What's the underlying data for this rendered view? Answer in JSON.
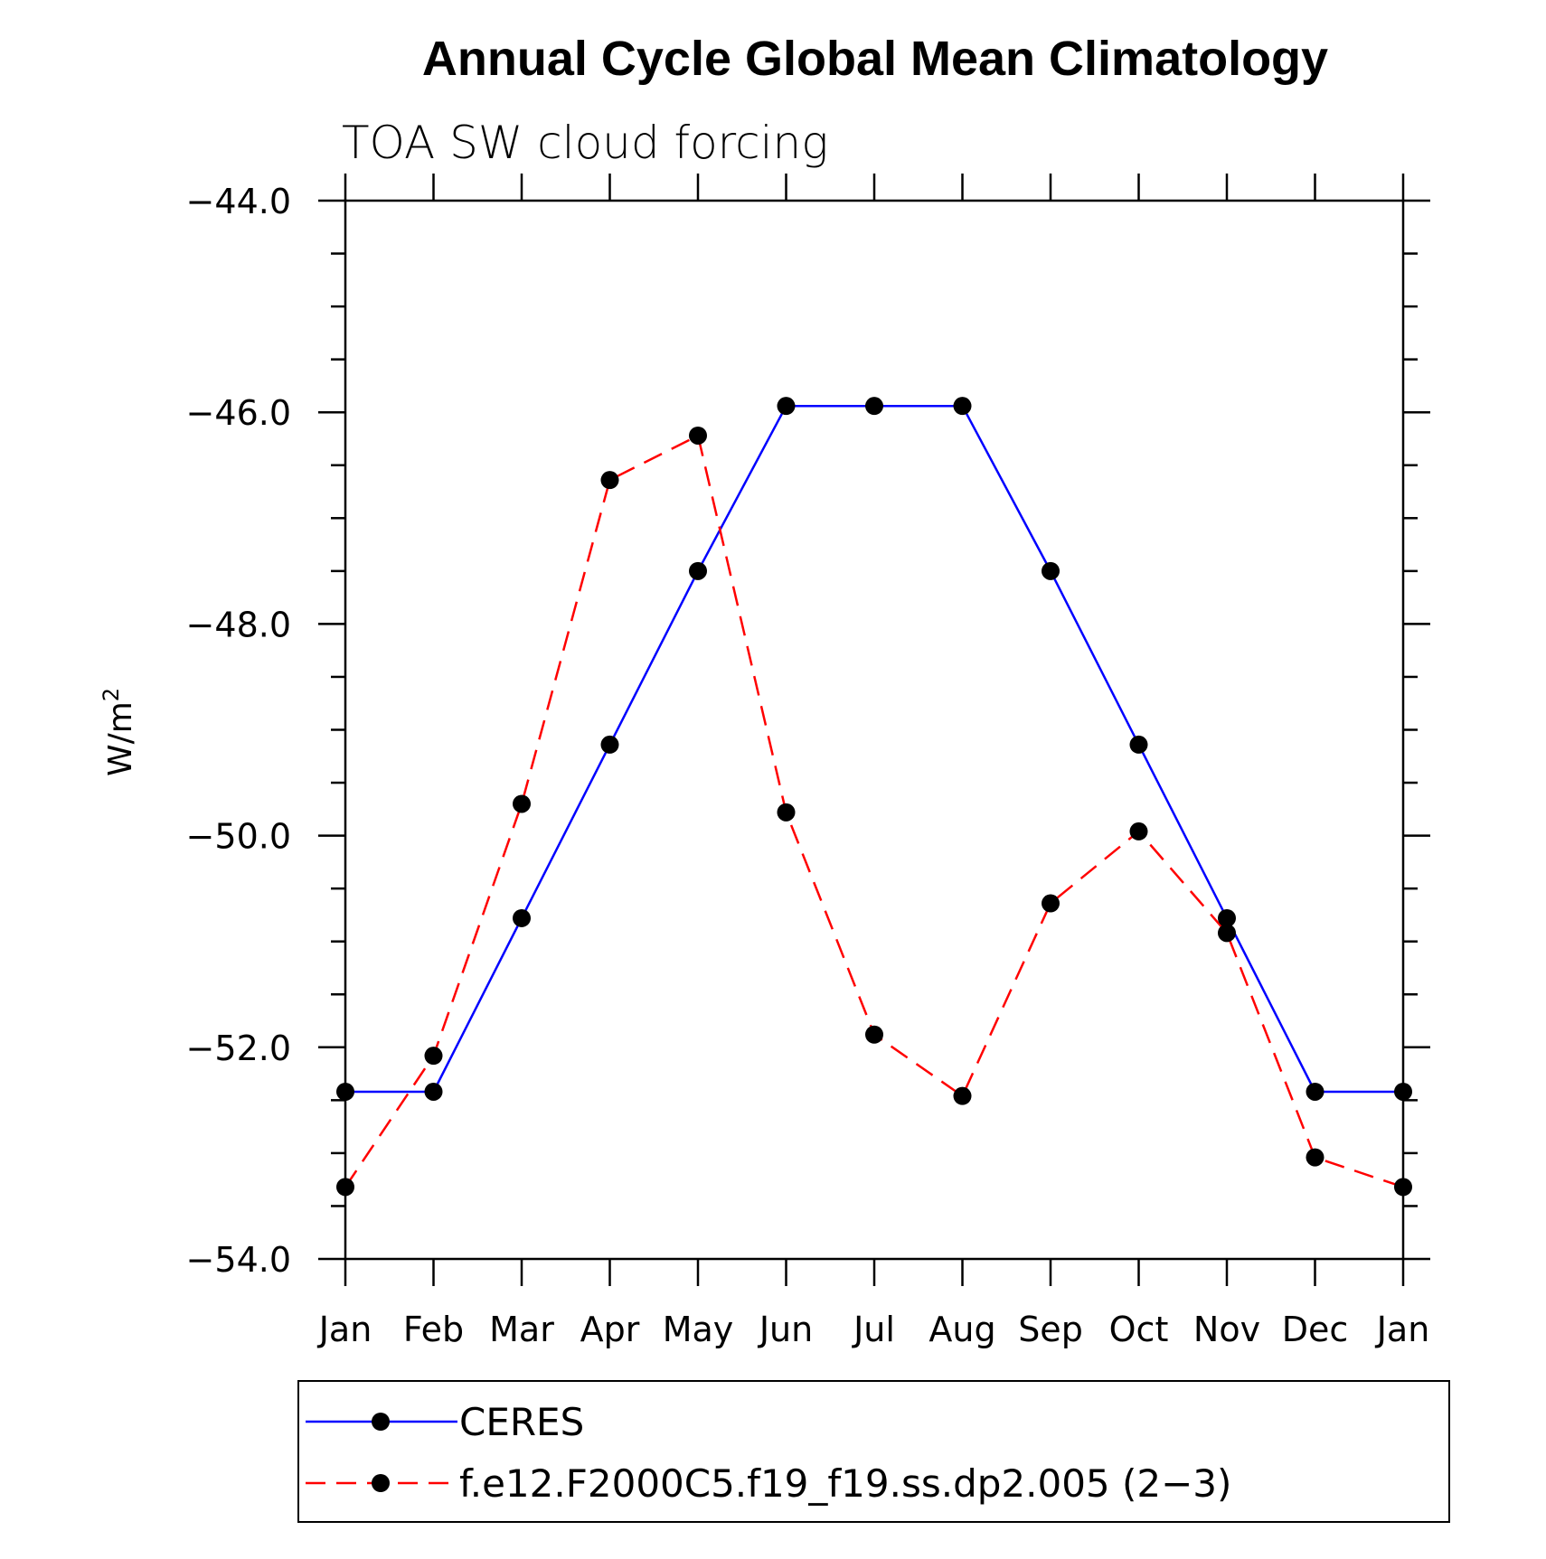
{
  "chart_data": {
    "type": "line",
    "title": "Annual Cycle Global Mean Climatology",
    "subtitle": "TOA SW cloud forcing",
    "ylabel": "W/m",
    "ylabel_sup": "2",
    "categories": [
      "Jan",
      "Feb",
      "Mar",
      "Apr",
      "May",
      "Jun",
      "Jul",
      "Aug",
      "Sep",
      "Oct",
      "Nov",
      "Dec",
      "Jan"
    ],
    "ylim": [
      -54.0,
      -44.0
    ],
    "yticks": [
      -44.0,
      -46.0,
      -48.0,
      -50.0,
      -52.0,
      -54.0
    ],
    "ytick_labels": [
      "−44.0",
      "−46.0",
      "−48.0",
      "−50.0",
      "−52.0",
      "−54.0"
    ],
    "grid": false,
    "legend_position": "bottom",
    "series": [
      {
        "name": "CERES",
        "color": "#0000ff",
        "dash": "solid",
        "marker": "circle",
        "values": [
          -52.42,
          -52.42,
          -50.78,
          -49.14,
          -47.5,
          -45.94,
          -45.94,
          -45.94,
          -47.5,
          -49.14,
          -50.78,
          -52.42,
          -52.42
        ]
      },
      {
        "name": "f.e12.F2000C5.f19_f19.ss.dp2.005 (2−3)",
        "color": "#ff0000",
        "dash": "dashed",
        "marker": "circle",
        "values": [
          -53.32,
          -52.08,
          -49.7,
          -46.64,
          -46.22,
          -49.78,
          -51.88,
          -52.46,
          -50.64,
          -49.96,
          -50.92,
          -53.04,
          -53.32
        ]
      }
    ]
  }
}
